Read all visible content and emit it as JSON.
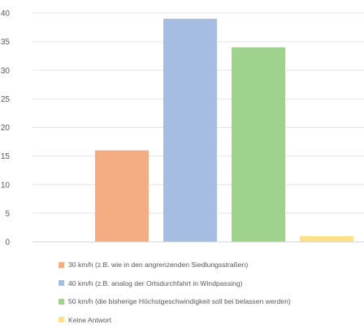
{
  "chart_data": {
    "type": "bar",
    "title": "",
    "xlabel": "",
    "ylabel": "",
    "ylim": [
      0,
      40
    ],
    "yticks": [
      0,
      5,
      10,
      15,
      20,
      25,
      30,
      35,
      40
    ],
    "grid": true,
    "legend_position": "bottom",
    "categories": [
      "30 km/h (z.B. wie in den angrenzenden Siedlungsstraßen)",
      "40 km/h (z.B. analog der Ortsdurchfahrt in Windpassing)",
      "50 km/h (die bisherige Höchstgeschwindigkeit soll bei belassen werden)",
      "Keine Antwort"
    ],
    "values": [
      16,
      39,
      34,
      1
    ],
    "colors": [
      "#f4ac82",
      "#a6bde2",
      "#9fd38d",
      "#fde089"
    ]
  }
}
